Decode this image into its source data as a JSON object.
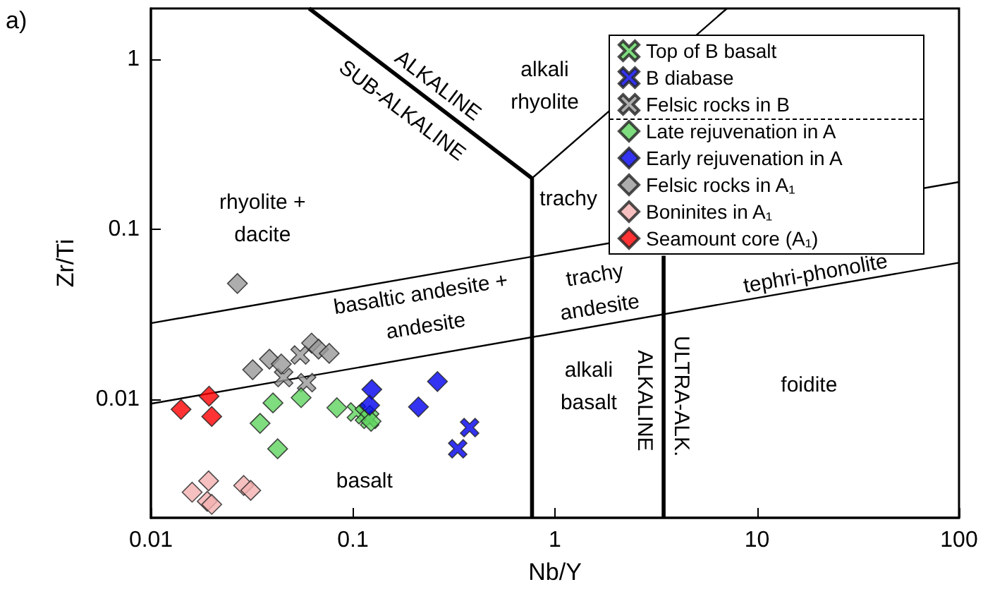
{
  "chart_data": {
    "type": "scatter",
    "xlabel": "Nb/Y",
    "ylabel": "Zr/Ti",
    "log": "xy",
    "grid": false,
    "legend": "top right",
    "xlim": [
      0.01,
      100
    ],
    "ylim": [
      0.002,
      2
    ],
    "xticks": [
      0.01,
      0.1,
      1,
      10,
      100
    ],
    "yticks": [
      0.01,
      0.1,
      1
    ],
    "series": [
      {
        "type": "line",
        "color": "#000000",
        "marker": "none",
        "line_style": "solid",
        "x": [
          0.0607,
          0.77,
          0.77
        ],
        "values": [
          2,
          0.2,
          0.002
        ]
      },
      {
        "type": "line",
        "color": "#000000",
        "marker": "none",
        "line_style": "solid",
        "x": [
          0.77,
          7.1
        ],
        "values": [
          0.2,
          2
        ]
      },
      {
        "type": "line",
        "color": "#000000",
        "marker": "none",
        "line_style": "solid",
        "x": [
          0.01,
          100
        ],
        "values": [
          0.028,
          0.19
        ]
      },
      {
        "type": "line",
        "color": "#000000",
        "marker": "none",
        "line_style": "solid",
        "x": [
          0.01,
          100
        ],
        "values": [
          0.0094,
          0.0636
        ]
      },
      {
        "type": "line",
        "color": "#000000",
        "marker": "none",
        "line_style": "solid",
        "x": [
          3.45,
          3.45
        ],
        "values": [
          0.002,
          0.07
        ]
      },
      {
        "name": "Top of B basalt",
        "color": "#5fd35f",
        "marker": "cross",
        "x": [
          0.104,
          0.114,
          0.121
        ],
        "values": [
          0.0084,
          0.0081,
          0.0076
        ]
      },
      {
        "name": "B diabase",
        "color": "#0000ee",
        "marker": "cross",
        "x": [
          0.378,
          0.33
        ],
        "values": [
          0.0068,
          0.0051
        ]
      },
      {
        "name": "Felsic rocks in B",
        "color": "#999999",
        "marker": "cross",
        "x": [
          0.0548,
          0.0454,
          0.059
        ],
        "values": [
          0.0182,
          0.0134,
          0.0125
        ]
      },
      {
        "name": "Late rejuvenation in A",
        "color": "#5fd35f",
        "marker": "diamond",
        "x": [
          0.0402,
          0.0347,
          0.0424,
          0.0554,
          0.0833,
          0.123
        ],
        "values": [
          0.0095,
          0.0072,
          0.0051,
          0.0102,
          0.0089,
          0.0074
        ]
      },
      {
        "name": "Early rejuvenation in A",
        "color": "#0000ee",
        "marker": "diamond",
        "x": [
          0.124,
          0.121,
          0.211,
          0.262
        ],
        "values": [
          0.0114,
          0.0092,
          0.009,
          0.0127
        ]
      },
      {
        "name": "Felsic rocks in A₁",
        "color": "#999999",
        "marker": "diamond",
        "x": [
          0.0268,
          0.0319,
          0.0386,
          0.0442,
          0.0624,
          0.0676,
          0.0763
        ],
        "values": [
          0.048,
          0.0149,
          0.0172,
          0.0161,
          0.0214,
          0.0197,
          0.0186
        ]
      },
      {
        "name": "Boninites in A₁",
        "color": "#f4b0b0",
        "marker": "diamond",
        "x": [
          0.016,
          0.0193,
          0.019,
          0.02,
          0.0288,
          0.0312
        ],
        "values": [
          0.00283,
          0.0033,
          0.0025,
          0.0024,
          0.0031,
          0.0029
        ]
      },
      {
        "name": "Seamount core (A₁)",
        "color": "#ff0000",
        "marker": "diamond",
        "x": [
          0.0141,
          0.0194,
          0.02
        ],
        "values": [
          0.0087,
          0.0104,
          0.0079
        ]
      }
    ],
    "annotations": [
      "a)",
      "ALKALINE",
      "SUB-ALKALINE",
      "alkali\nrhyolite",
      "trachy",
      "rhyolite +\ndacite",
      "basaltic andesite +\nandesite",
      "trachy\nandesite",
      "tephri-phonolite",
      "alkali\nbasalt",
      "ALKALINE",
      "ULTRA-ALK.",
      "foidite",
      "basalt"
    ]
  }
}
